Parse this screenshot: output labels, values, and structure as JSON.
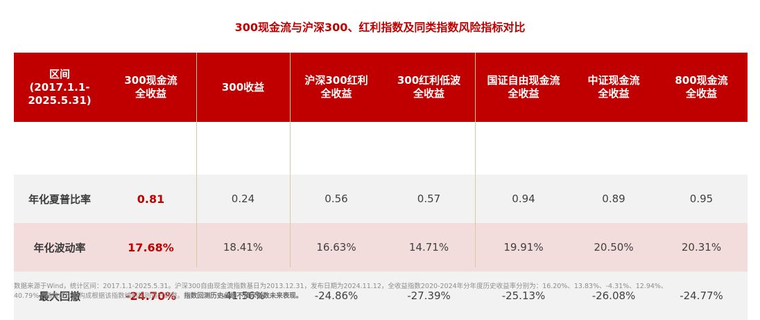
{
  "title": "300现金流与沪深300、红利指数及同类指数风险指标对比",
  "header": {
    "col0": [
      "区间",
      "(2017.1.1-",
      "2025.5.31)"
    ],
    "col1": [
      "300现金流",
      "全收益"
    ],
    "col2": [
      "300收益"
    ],
    "col3": [
      "沪深300红利",
      "全收益"
    ],
    "col4": [
      "300红利低波",
      "全收益"
    ],
    "col5": [
      "国证自由现金流",
      "全收益"
    ],
    "col6": [
      "中证现金流",
      "全收益"
    ],
    "col7": [
      "800现金流",
      "全收益"
    ]
  },
  "rows": [
    {
      "label": "年化夏普比率",
      "values": [
        "0.81",
        "0.24",
        "0.56",
        "0.57",
        "0.94",
        "0.89",
        "0.95"
      ]
    },
    {
      "label": "年化波动率",
      "values": [
        "17.68%",
        "18.41%",
        "16.63%",
        "14.71%",
        "19.91%",
        "20.50%",
        "20.31%"
      ]
    },
    {
      "label": "最大回撤",
      "values": [
        "-24.70%",
        "-41.56%",
        "-24.86%",
        "-27.39%",
        "-25.13%",
        "-26.08%",
        "-24.77%"
      ]
    }
  ],
  "footnote": {
    "line1": "数据来源于Wind，统计区间：2017.1.1-2025.5.31。沪深300自由现金流指数基日为2013.12.31，发布日期为2024.11.12，全收益指数2020-2024年分年度历史收益率分别为：16.20%、13.83%、-4.31%、12.94%、",
    "line2": "40.79%。指数成份股构成根据该指数编制规则适时调整。",
    "line2_bold": "指数回测历史业绩不预示指数未来表现。"
  },
  "colors": {
    "brand_red": "#c00000",
    "row_grey": "#f2f2f2",
    "row_pink": "#f2dcdc",
    "divider": "#d9c9a3"
  }
}
